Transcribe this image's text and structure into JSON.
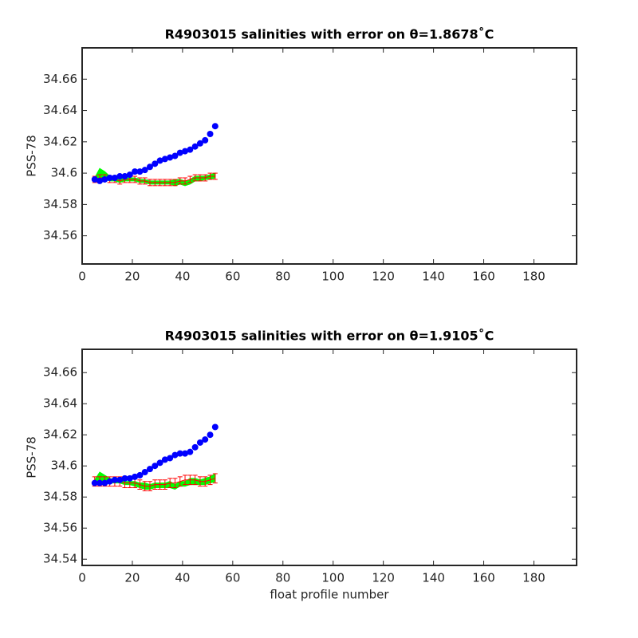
{
  "chart_data": [
    {
      "type": "errorbar_compare",
      "title": "R4903015 salinities with error on θ=1.8678˚C",
      "y_label": "PSS-78",
      "x": [
        5,
        7,
        9,
        11,
        13,
        15,
        17,
        19,
        21,
        23,
        25,
        27,
        29,
        31,
        33,
        35,
        37,
        39,
        41,
        43,
        45,
        47,
        49,
        51,
        53
      ],
      "xlim": [
        0,
        197
      ],
      "xticks": [
        0,
        20,
        40,
        60,
        80,
        100,
        120,
        140,
        160,
        180
      ],
      "ylim": [
        34.542,
        34.68
      ],
      "yticks": [
        34.56,
        34.58,
        34.6,
        34.62,
        34.64,
        34.66
      ],
      "series": [
        {
          "color": "#00ff00",
          "upper": [
            34.597,
            34.603,
            34.601,
            34.598,
            34.597,
            34.596,
            34.597,
            34.597,
            34.597,
            34.596,
            34.596,
            34.595,
            34.595,
            34.595,
            34.595,
            34.595,
            34.596,
            34.596,
            34.595,
            34.596,
            34.598,
            34.598,
            34.598,
            34.599,
            34.6
          ],
          "lower": [
            34.595,
            34.596,
            34.596,
            34.595,
            34.595,
            34.594,
            34.595,
            34.595,
            34.595,
            34.594,
            34.594,
            34.593,
            34.593,
            34.593,
            34.593,
            34.593,
            34.592,
            34.593,
            34.592,
            34.593,
            34.595,
            34.595,
            34.596,
            34.596,
            34.597
          ]
        },
        {
          "color": "#ff0000",
          "values": [
            34.596,
            34.597,
            34.597,
            34.596,
            34.596,
            34.595,
            34.596,
            34.596,
            34.596,
            34.595,
            34.595,
            34.594,
            34.594,
            34.594,
            34.594,
            34.594,
            34.594,
            34.595,
            34.595,
            34.596,
            34.597,
            34.597,
            34.597,
            34.598,
            34.598
          ],
          "errors": [
            0.002,
            0.002,
            0.002,
            0.002,
            0.002,
            0.002,
            0.002,
            0.002,
            0.002,
            0.002,
            0.002,
            0.002,
            0.002,
            0.002,
            0.002,
            0.002,
            0.002,
            0.002,
            0.002,
            0.002,
            0.002,
            0.002,
            0.002,
            0.002,
            0.002
          ]
        },
        {
          "color": "#0000ff",
          "values": [
            34.596,
            34.595,
            34.596,
            34.597,
            34.597,
            34.598,
            34.598,
            34.599,
            34.601,
            34.601,
            34.602,
            34.604,
            34.606,
            34.608,
            34.609,
            34.61,
            34.611,
            34.613,
            34.614,
            34.615,
            34.617,
            34.619,
            34.621,
            34.625,
            34.63
          ]
        }
      ]
    },
    {
      "type": "errorbar_compare",
      "title": "R4903015 salinities with error on θ=1.9105˚C",
      "y_label": "PSS-78",
      "x_label": "float profile number",
      "x": [
        5,
        7,
        9,
        11,
        13,
        15,
        17,
        19,
        21,
        23,
        25,
        27,
        29,
        31,
        33,
        35,
        37,
        39,
        41,
        43,
        45,
        47,
        49,
        51,
        53
      ],
      "xlim": [
        0,
        197
      ],
      "xticks": [
        0,
        20,
        40,
        60,
        80,
        100,
        120,
        140,
        160,
        180
      ],
      "ylim": [
        34.536,
        34.675
      ],
      "yticks": [
        34.54,
        34.56,
        34.58,
        34.6,
        34.62,
        34.64,
        34.66
      ],
      "series": [
        {
          "color": "#00ff00",
          "upper": [
            34.591,
            34.596,
            34.594,
            34.592,
            34.591,
            34.591,
            34.59,
            34.59,
            34.59,
            34.589,
            34.589,
            34.588,
            34.589,
            34.589,
            34.589,
            34.59,
            34.588,
            34.59,
            34.59,
            34.592,
            34.592,
            34.591,
            34.592,
            34.593,
            34.595
          ],
          "lower": [
            34.589,
            34.59,
            34.589,
            34.589,
            34.589,
            34.589,
            34.588,
            34.588,
            34.587,
            34.586,
            34.585,
            34.585,
            34.586,
            34.586,
            34.586,
            34.586,
            34.585,
            34.587,
            34.587,
            34.588,
            34.588,
            34.588,
            34.588,
            34.589,
            34.59
          ]
        },
        {
          "color": "#ff0000",
          "values": [
            34.59,
            34.59,
            34.59,
            34.59,
            34.59,
            34.59,
            34.589,
            34.589,
            34.589,
            34.588,
            34.587,
            34.587,
            34.588,
            34.588,
            34.588,
            34.589,
            34.589,
            34.59,
            34.591,
            34.591,
            34.591,
            34.59,
            34.59,
            34.591,
            34.592
          ],
          "errors": [
            0.003,
            0.003,
            0.003,
            0.003,
            0.003,
            0.003,
            0.003,
            0.003,
            0.003,
            0.003,
            0.003,
            0.003,
            0.003,
            0.003,
            0.003,
            0.003,
            0.003,
            0.003,
            0.003,
            0.003,
            0.003,
            0.003,
            0.003,
            0.003,
            0.003
          ]
        },
        {
          "color": "#0000ff",
          "values": [
            34.589,
            34.589,
            34.589,
            34.59,
            34.591,
            34.591,
            34.592,
            34.592,
            34.593,
            34.594,
            34.596,
            34.598,
            34.6,
            34.602,
            34.604,
            34.605,
            34.607,
            34.608,
            34.608,
            34.609,
            34.612,
            34.615,
            34.617,
            34.62,
            34.625
          ]
        }
      ]
    }
  ]
}
